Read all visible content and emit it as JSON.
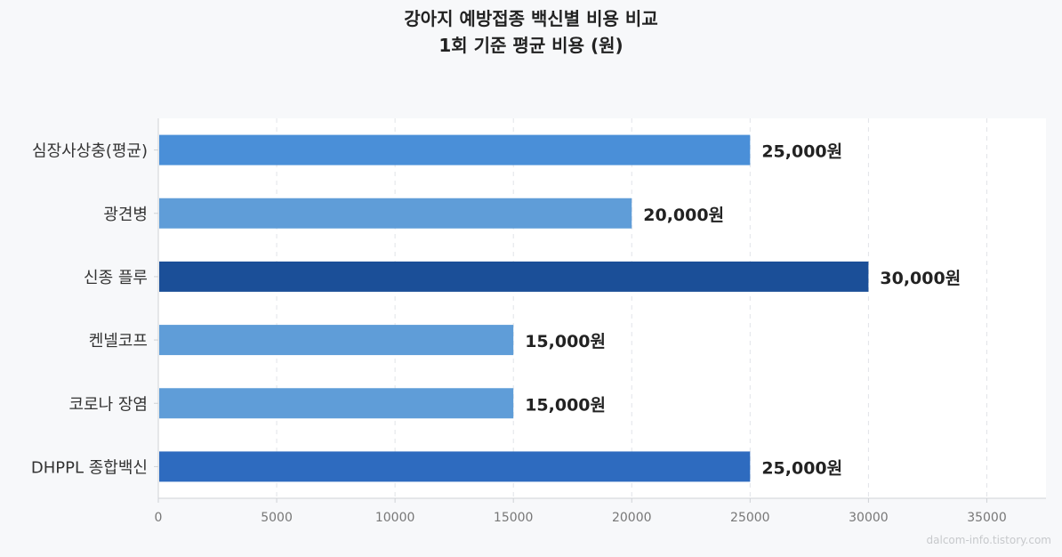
{
  "chart_data": {
    "type": "bar",
    "orientation": "horizontal",
    "title": "강아지 예방접종 백신별 비용 비교",
    "subtitle": "1회 기준 평균 비용 (원)",
    "categories": [
      "심장사상충(평균)",
      "광견병",
      "신종 플루",
      "켄넬코프",
      "코로나 장염",
      "DHPPL 종합백신"
    ],
    "values": [
      25000,
      20000,
      30000,
      15000,
      15000,
      25000
    ],
    "data_labels": [
      "25,000원",
      "20,000원",
      "30,000원",
      "15,000원",
      "15,000원",
      "25,000원"
    ],
    "bar_colors": [
      "#4a8fd8",
      "#5f9dd8",
      "#1b4f98",
      "#5f9dd8",
      "#5f9dd8",
      "#2e6bbf"
    ],
    "xlim": [
      0,
      37500
    ],
    "xticks": [
      0,
      5000,
      10000,
      15000,
      20000,
      25000,
      30000,
      35000
    ],
    "xtick_labels": [
      "0",
      "5000",
      "10000",
      "15000",
      "20000",
      "25000",
      "30000",
      "35000"
    ],
    "xlabel": "",
    "ylabel": "",
    "grid": "vertical dashed",
    "legend": "none"
  },
  "watermark": "dalcom-info.tistory.com",
  "colors": {
    "background": "#f7f8fa",
    "plot_background": "#ffffff",
    "grid": "#e2e4e8",
    "axis": "#cfd2d6"
  }
}
